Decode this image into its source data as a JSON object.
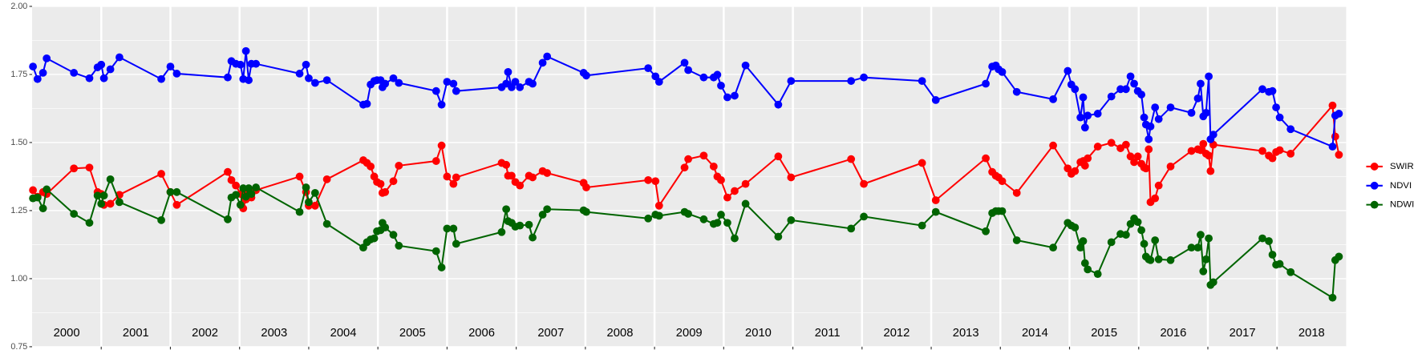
{
  "chart_data": {
    "type": "line",
    "xlim": [
      2000,
      2019
    ],
    "xticks": [
      2001,
      2002,
      2003,
      2004,
      2005,
      2006,
      2007,
      2008,
      2009,
      2010,
      2011,
      2012,
      2013,
      2014,
      2015,
      2016,
      2017,
      2018
    ],
    "year_labels": [
      {
        "value": 2000.5,
        "label": "2000"
      },
      {
        "value": 2001.5,
        "label": "2001"
      },
      {
        "value": 2002.5,
        "label": "2002"
      },
      {
        "value": 2003.5,
        "label": "2003"
      },
      {
        "value": 2004.5,
        "label": "2004"
      },
      {
        "value": 2005.5,
        "label": "2005"
      },
      {
        "value": 2006.5,
        "label": "2006"
      },
      {
        "value": 2007.5,
        "label": "2007"
      },
      {
        "value": 2008.5,
        "label": "2008"
      },
      {
        "value": 2009.5,
        "label": "2009"
      },
      {
        "value": 2010.5,
        "label": "2010"
      },
      {
        "value": 2011.5,
        "label": "2011"
      },
      {
        "value": 2012.5,
        "label": "2012"
      },
      {
        "value": 2013.5,
        "label": "2013"
      },
      {
        "value": 2014.5,
        "label": "2014"
      },
      {
        "value": 2015.5,
        "label": "2015"
      },
      {
        "value": 2016.5,
        "label": "2016"
      },
      {
        "value": 2017.5,
        "label": "2017"
      },
      {
        "value": 2018.5,
        "label": "2018"
      }
    ],
    "ylim": [
      0.75,
      2.0
    ],
    "yticks": [
      {
        "value": 0.75,
        "label": "0.75"
      },
      {
        "value": 1.0,
        "label": "1.00"
      },
      {
        "value": 1.25,
        "label": "1.25"
      },
      {
        "value": 1.5,
        "label": "1.50"
      },
      {
        "value": 1.75,
        "label": "1.75"
      },
      {
        "value": 2.0,
        "label": "2.00"
      }
    ],
    "grid": true,
    "legend_position": "right",
    "x": [
      2000.013,
      2000.079,
      2000.158,
      2000.211,
      2000.605,
      2000.829,
      2000.947,
      2001.0,
      2001.039,
      2001.132,
      2001.263,
      2001.868,
      2002.0,
      2002.092,
      2002.829,
      2002.882,
      2002.947,
      2003.013,
      2003.053,
      2003.092,
      2003.132,
      2003.171,
      2003.237,
      2003.868,
      2003.961,
      2004.0,
      2004.092,
      2004.263,
      2004.789,
      2004.842,
      2004.895,
      2004.947,
      2004.987,
      2005.039,
      2005.066,
      2005.105,
      2005.224,
      2005.303,
      2005.842,
      2005.921,
      2006.0,
      2006.092,
      2006.132,
      2006.789,
      2006.855,
      2006.882,
      2006.934,
      2006.987,
      2007.053,
      2007.184,
      2007.237,
      2007.382,
      2007.447,
      2007.974,
      2008.013,
      2008.908,
      2009.013,
      2009.066,
      2009.434,
      2009.487,
      2009.711,
      2009.855,
      2009.908,
      2009.961,
      2010.053,
      2010.158,
      2010.316,
      2010.789,
      2010.974,
      2011.842,
      2012.026,
      2012.868,
      2013.066,
      2013.789,
      2013.882,
      2013.934,
      2013.974,
      2014.026,
      2014.237,
      2014.763,
      2014.974,
      2015.026,
      2015.079,
      2015.158,
      2015.197,
      2015.224,
      2015.263,
      2015.408,
      2015.605,
      2015.737,
      2015.816,
      2015.882,
      2015.934,
      2015.987,
      2016.039,
      2016.079,
      2016.105,
      2016.145,
      2016.171,
      2016.237,
      2016.289,
      2016.461,
      2016.763,
      2016.855,
      2016.895,
      2016.934,
      2016.974,
      2017.013,
      2017.039,
      2017.079,
      2017.789,
      2017.882,
      2017.934,
      2017.987,
      2018.039,
      2018.197,
      2018.803,
      2018.842,
      2018.895
    ],
    "series": [
      {
        "name": "SWIR",
        "color": "#ff0000",
        "values": [
          1.325,
          1.301,
          1.318,
          1.311,
          1.405,
          1.408,
          1.318,
          1.311,
          1.271,
          1.275,
          1.308,
          1.385,
          1.318,
          1.271,
          1.392,
          1.362,
          1.342,
          1.311,
          1.258,
          1.291,
          1.318,
          1.298,
          1.325,
          1.375,
          1.318,
          1.268,
          1.268,
          1.365,
          1.435,
          1.425,
          1.412,
          1.375,
          1.355,
          1.348,
          1.315,
          1.318,
          1.358,
          1.415,
          1.432,
          1.489,
          1.375,
          1.348,
          1.372,
          1.425,
          1.418,
          1.378,
          1.378,
          1.355,
          1.342,
          1.378,
          1.372,
          1.395,
          1.388,
          1.352,
          1.335,
          1.362,
          1.358,
          1.268,
          1.408,
          1.439,
          1.452,
          1.412,
          1.375,
          1.362,
          1.298,
          1.322,
          1.348,
          1.449,
          1.372,
          1.439,
          1.348,
          1.425,
          1.288,
          1.442,
          1.392,
          1.378,
          1.372,
          1.358,
          1.315,
          1.489,
          1.405,
          1.385,
          1.395,
          1.428,
          1.432,
          1.415,
          1.442,
          1.485,
          1.499,
          1.479,
          1.492,
          1.449,
          1.428,
          1.449,
          1.422,
          1.408,
          1.405,
          1.475,
          1.281,
          1.295,
          1.342,
          1.412,
          1.469,
          1.475,
          1.472,
          1.495,
          1.459,
          1.452,
          1.395,
          1.492,
          1.469,
          1.452,
          1.442,
          1.465,
          1.472,
          1.459,
          1.636,
          1.522,
          1.455
        ]
      },
      {
        "name": "NDVI",
        "color": "#0000ff",
        "values": [
          1.779,
          1.733,
          1.756,
          1.809,
          1.756,
          1.736,
          1.776,
          1.786,
          1.736,
          1.769,
          1.813,
          1.733,
          1.779,
          1.753,
          1.739,
          1.799,
          1.789,
          1.786,
          1.733,
          1.836,
          1.729,
          1.789,
          1.789,
          1.753,
          1.786,
          1.736,
          1.719,
          1.729,
          1.639,
          1.642,
          1.713,
          1.726,
          1.729,
          1.729,
          1.703,
          1.716,
          1.736,
          1.719,
          1.689,
          1.639,
          1.723,
          1.716,
          1.689,
          1.703,
          1.716,
          1.759,
          1.703,
          1.723,
          1.703,
          1.723,
          1.716,
          1.793,
          1.816,
          1.756,
          1.746,
          1.773,
          1.743,
          1.723,
          1.793,
          1.766,
          1.739,
          1.739,
          1.749,
          1.709,
          1.666,
          1.672,
          1.783,
          1.639,
          1.726,
          1.726,
          1.739,
          1.726,
          1.656,
          1.716,
          1.779,
          1.783,
          1.769,
          1.759,
          1.686,
          1.659,
          1.763,
          1.713,
          1.696,
          1.592,
          1.666,
          1.555,
          1.599,
          1.606,
          1.669,
          1.696,
          1.696,
          1.743,
          1.716,
          1.689,
          1.676,
          1.592,
          1.566,
          1.512,
          1.559,
          1.629,
          1.586,
          1.629,
          1.609,
          1.662,
          1.716,
          1.596,
          1.609,
          1.743,
          1.512,
          1.529,
          1.696,
          1.686,
          1.689,
          1.629,
          1.592,
          1.549,
          1.485,
          1.599,
          1.606
        ]
      },
      {
        "name": "NDWI",
        "color": "#006400",
        "values": [
          1.295,
          1.298,
          1.258,
          1.328,
          1.238,
          1.205,
          1.305,
          1.275,
          1.305,
          1.365,
          1.281,
          1.215,
          1.318,
          1.318,
          1.218,
          1.298,
          1.308,
          1.271,
          1.332,
          1.301,
          1.332,
          1.311,
          1.335,
          1.245,
          1.335,
          1.281,
          1.315,
          1.201,
          1.114,
          1.134,
          1.144,
          1.148,
          1.174,
          1.178,
          1.205,
          1.188,
          1.161,
          1.121,
          1.101,
          1.041,
          1.184,
          1.184,
          1.128,
          1.171,
          1.255,
          1.211,
          1.205,
          1.191,
          1.195,
          1.198,
          1.151,
          1.235,
          1.255,
          1.251,
          1.245,
          1.221,
          1.235,
          1.231,
          1.245,
          1.238,
          1.218,
          1.201,
          1.205,
          1.235,
          1.205,
          1.148,
          1.275,
          1.154,
          1.215,
          1.184,
          1.228,
          1.195,
          1.245,
          1.174,
          1.241,
          1.248,
          1.248,
          1.248,
          1.141,
          1.114,
          1.205,
          1.195,
          1.188,
          1.114,
          1.138,
          1.057,
          1.034,
          1.017,
          1.134,
          1.164,
          1.161,
          1.201,
          1.221,
          1.208,
          1.178,
          1.128,
          1.081,
          1.071,
          1.068,
          1.141,
          1.071,
          1.068,
          1.114,
          1.114,
          1.161,
          1.027,
          1.071,
          1.148,
          0.977,
          0.987,
          1.148,
          1.138,
          1.088,
          1.051,
          1.054,
          1.024,
          0.93,
          1.068,
          1.081
        ]
      }
    ]
  }
}
